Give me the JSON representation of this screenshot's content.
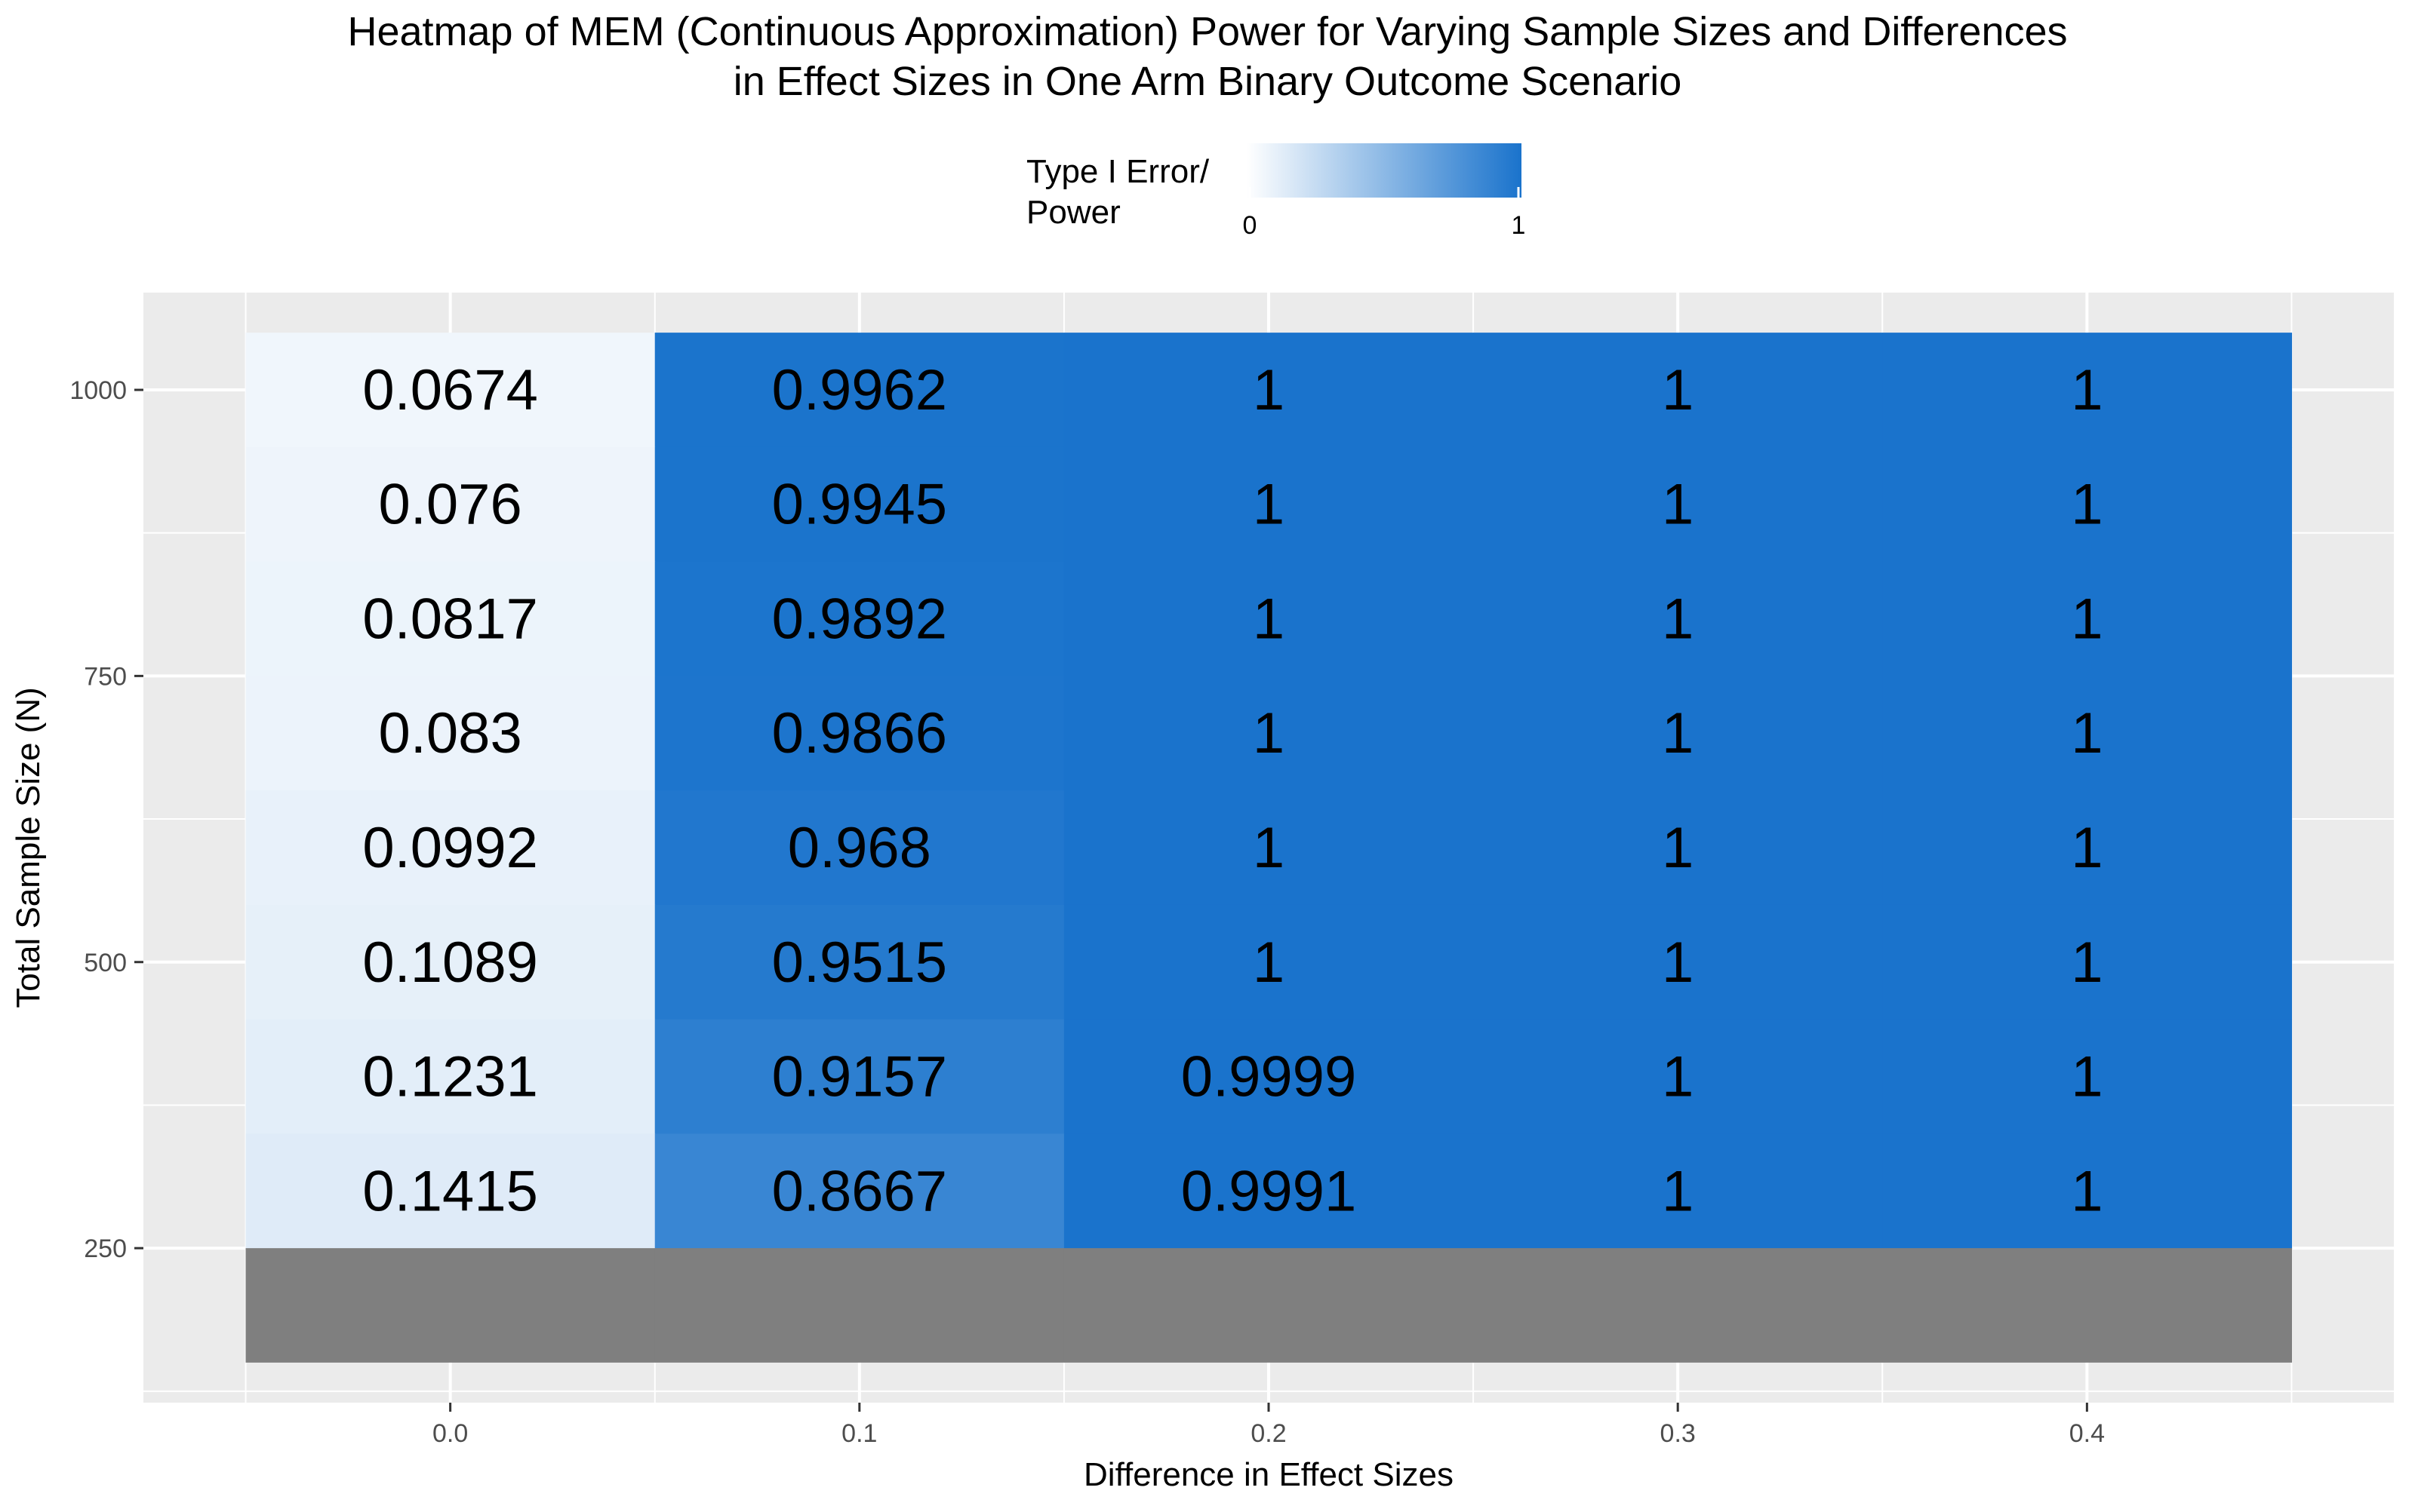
{
  "chart_data": {
    "type": "heatmap",
    "title_lines": [
      "Heatmap of MEM (Continuous Approximation) Power for Varying Sample Sizes and Differences",
      "in Effect Sizes in One Arm Binary Outcome Scenario"
    ],
    "xlabel": "Difference in Effect Sizes",
    "ylabel": "Total Sample Size (N)",
    "x_ticks": [
      "0.0",
      "0.1",
      "0.2",
      "0.3",
      "0.4"
    ],
    "x_tick_values": [
      0.0,
      0.1,
      0.2,
      0.3,
      0.4
    ],
    "y_ticks": [
      "250",
      "500",
      "750",
      "1000"
    ],
    "y_tick_values": [
      250,
      500,
      750,
      1000
    ],
    "xlim": [
      -0.075,
      0.475
    ],
    "ylim": [
      115,
      1085
    ],
    "x_categories": [
      0.0,
      0.1,
      0.2,
      0.3,
      0.4
    ],
    "y_categories": [
      1000,
      900,
      800,
      700,
      600,
      500,
      400,
      300
    ],
    "values": [
      [
        0.0674,
        0.9962,
        1,
        1,
        1
      ],
      [
        0.076,
        0.9945,
        1,
        1,
        1
      ],
      [
        0.0817,
        0.9892,
        1,
        1,
        1
      ],
      [
        0.083,
        0.9866,
        1,
        1,
        1
      ],
      [
        0.0992,
        0.968,
        1,
        1,
        1
      ],
      [
        0.1089,
        0.9515,
        1,
        1,
        1
      ],
      [
        0.1231,
        0.9157,
        0.9999,
        1,
        1
      ],
      [
        0.1415,
        0.8667,
        0.9991,
        1,
        1
      ]
    ],
    "value_labels": [
      [
        "0.0674",
        "0.9962",
        "1",
        "1",
        "1"
      ],
      [
        "0.076",
        "0.9945",
        "1",
        "1",
        "1"
      ],
      [
        "0.0817",
        "0.9892",
        "1",
        "1",
        "1"
      ],
      [
        "0.083",
        "0.9866",
        "1",
        "1",
        "1"
      ],
      [
        "0.0992",
        "0.968",
        "1",
        "1",
        "1"
      ],
      [
        "0.1089",
        "0.9515",
        "1",
        "1",
        "1"
      ],
      [
        "0.1231",
        "0.9157",
        "0.9999",
        "1",
        "1"
      ],
      [
        "0.1415",
        "0.8667",
        "0.9991",
        "1",
        "1"
      ]
    ],
    "na_row": {
      "sample_size": 200,
      "color": "#7f7f7f"
    },
    "legend": {
      "title_lines": [
        "Type I Error/",
        "Power"
      ],
      "min_label": "0",
      "max_label": "1",
      "low_color": "#ffffff",
      "high_color": "#1a73cc",
      "placement": "top"
    },
    "grid": true,
    "colors": {
      "panel_bg": "#ebebeb",
      "grid_major": "#ffffff",
      "text": "#000000",
      "axis_text": "#4d4d4d",
      "tick": "#333333"
    }
  }
}
